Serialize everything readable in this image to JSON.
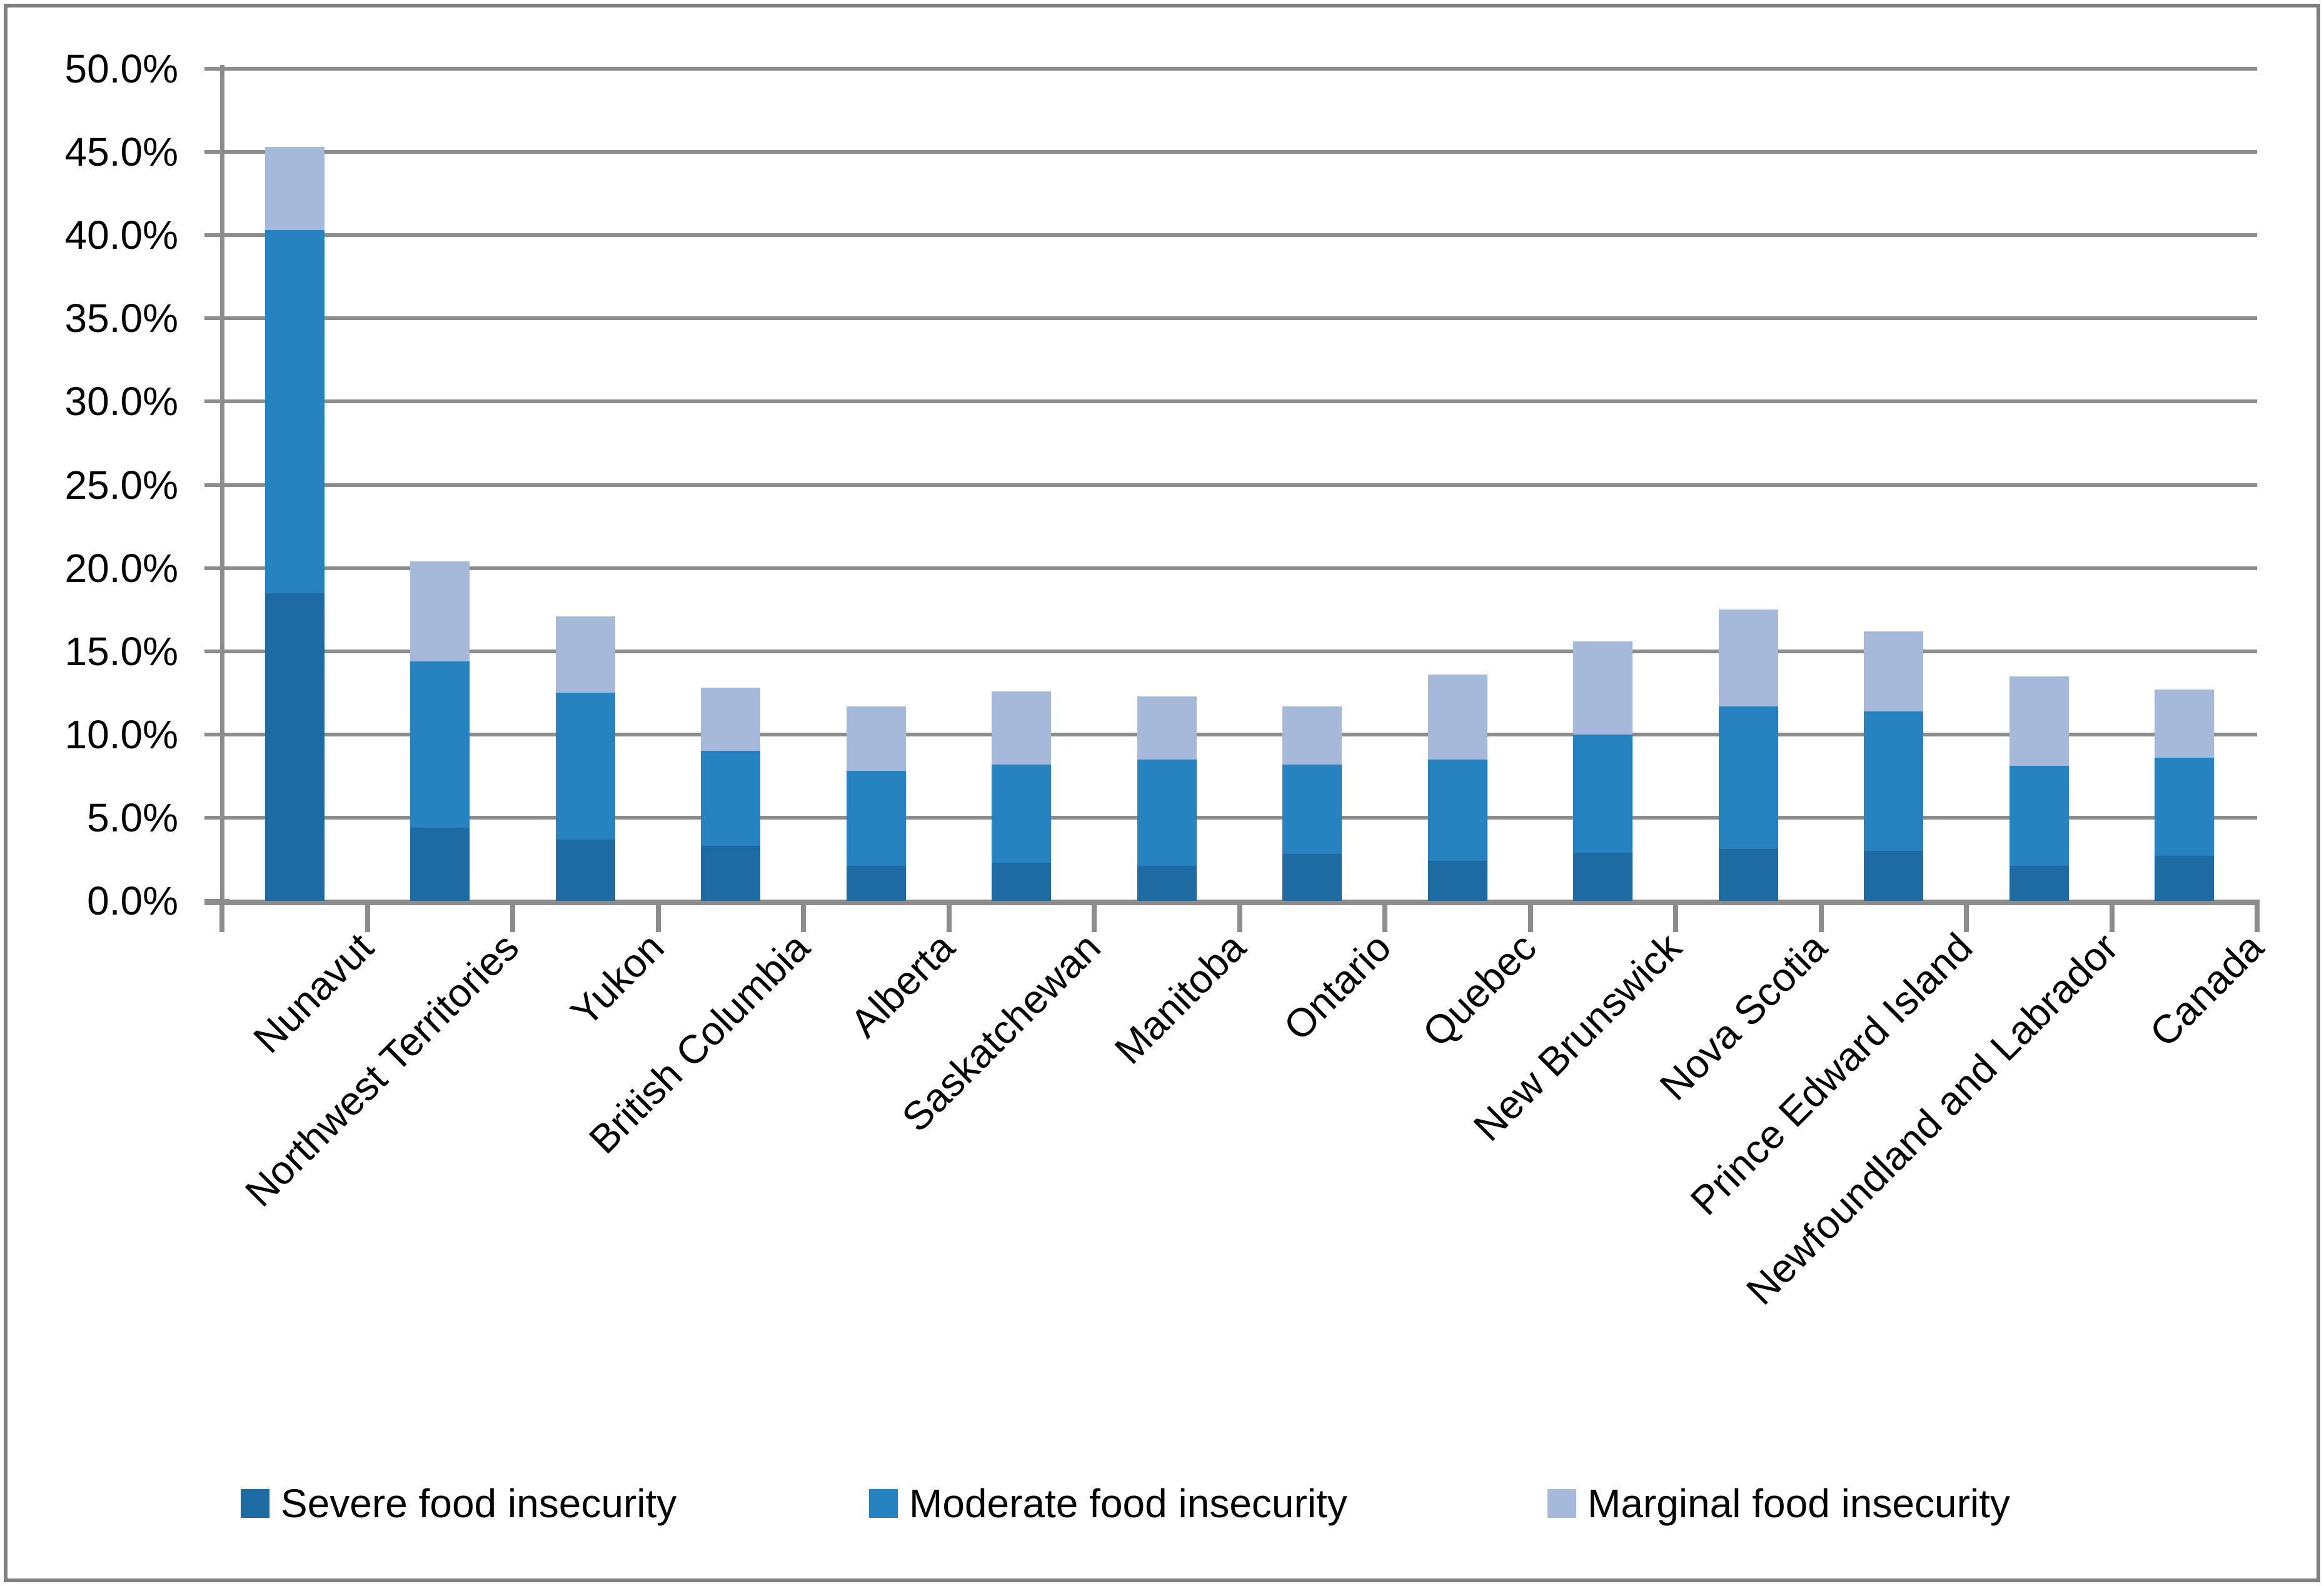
{
  "chart_data": {
    "type": "bar",
    "stacked": true,
    "title": "",
    "xlabel": "",
    "ylabel": "",
    "categories": [
      "Nunavut",
      "Northwest Territories",
      "Yukon",
      "British Columbia",
      "Alberta",
      "Saskatchewan",
      "Manitoba",
      "Ontario",
      "Quebec",
      "New Brunswick",
      "Nova Scotia",
      "Prince Edward Island",
      "Newfoundland and Labrador",
      "Canada"
    ],
    "series": [
      {
        "name": "Severe food insecurity",
        "color": "#1e6ba3",
        "values": [
          18.5,
          4.4,
          3.7,
          3.3,
          2.1,
          2.3,
          2.1,
          2.8,
          2.4,
          2.9,
          3.1,
          3.0,
          2.1,
          2.7
        ]
      },
      {
        "name": "Moderate food insecurity",
        "color": "#2783c0",
        "values": [
          21.8,
          10.0,
          8.8,
          5.7,
          5.7,
          5.9,
          6.4,
          5.4,
          6.1,
          7.1,
          8.6,
          8.4,
          6.0,
          5.9
        ]
      },
      {
        "name": "Marginal food insecurity",
        "color": "#a6b9da",
        "values": [
          5.0,
          6.0,
          4.6,
          3.8,
          3.9,
          4.4,
          3.8,
          3.5,
          5.1,
          5.6,
          5.8,
          4.8,
          5.4,
          4.1
        ]
      }
    ],
    "totals": [
      45.3,
      20.4,
      17.1,
      12.8,
      11.7,
      12.6,
      12.3,
      11.7,
      13.6,
      15.6,
      17.5,
      16.2,
      13.5,
      12.7
    ],
    "ylim": [
      0,
      50
    ],
    "ytick_step": 5,
    "ytick_labels": [
      "0.0%",
      "5.0%",
      "10.0%",
      "15.0%",
      "20.0%",
      "25.0%",
      "30.0%",
      "35.0%",
      "40.0%",
      "45.0%",
      "50.0%"
    ],
    "grid": true,
    "legend_position": "bottom"
  },
  "colors": {
    "gridline": "#8c8c8c",
    "axis": "#8c8c8c",
    "frame_border": "#7f7f7f",
    "text": "#000000",
    "background": "#ffffff"
  }
}
